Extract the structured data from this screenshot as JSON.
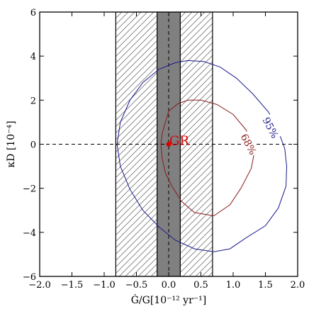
{
  "chart_data": {
    "type": "scatter",
    "xlabel": "Ġ/G[10⁻¹² yr⁻¹]",
    "ylabel": "κD [10⁻⁴]",
    "xlim": [
      -2.0,
      2.0
    ],
    "ylim": [
      -6,
      6
    ],
    "x_ticks": [
      -2.0,
      -1.5,
      -1.0,
      -0.5,
      0.0,
      0.5,
      1.0,
      1.5,
      2.0
    ],
    "x_tick_labels": [
      "−2.0",
      "−1.5",
      "−1.0",
      "−0.5",
      "0.0",
      "0.5",
      "1.0",
      "1.5",
      "2.0"
    ],
    "y_ticks": [
      -6,
      -4,
      -2,
      0,
      2,
      4,
      6
    ],
    "y_tick_labels": [
      "−6",
      "−4",
      "−2",
      "0",
      "2",
      "4",
      "6"
    ],
    "reference_lines": {
      "horizontal_y": 0,
      "vertical_x": 0
    },
    "bands": [
      {
        "style": "hatched",
        "x_range": [
          -0.82,
          0.68
        ],
        "color": "#888888"
      },
      {
        "style": "solid",
        "x_range": [
          -0.18,
          0.18
        ],
        "color": "#808080"
      }
    ],
    "point": {
      "label": "GR",
      "x": 0.0,
      "y": 0.0,
      "color": "#dd0000"
    },
    "series": [
      {
        "name": "68%",
        "color": "#8b1a1a",
        "label_pos": {
          "x": 1.24,
          "y": 0.0
        },
        "points": [
          [
            0.0,
            1.5
          ],
          [
            0.15,
            1.85
          ],
          [
            0.3,
            2.0
          ],
          [
            0.5,
            2.0
          ],
          [
            0.75,
            1.8
          ],
          [
            1.0,
            1.35
          ],
          [
            1.2,
            0.65
          ],
          [
            1.3,
            0.0
          ],
          [
            1.32,
            -0.5
          ],
          [
            1.28,
            -1.1
          ],
          [
            1.12,
            -2.0
          ],
          [
            0.95,
            -2.75
          ],
          [
            0.7,
            -3.25
          ],
          [
            0.4,
            -3.1
          ],
          [
            0.2,
            -2.6
          ],
          [
            0.05,
            -1.9
          ],
          [
            -0.05,
            -1.3
          ],
          [
            -0.1,
            -0.65
          ],
          [
            -0.12,
            0.0
          ],
          [
            -0.1,
            0.5
          ],
          [
            -0.05,
            1.0
          ],
          [
            0.0,
            1.5
          ]
        ]
      },
      {
        "name": "95%",
        "color": "#1a1a8b",
        "label_pos": {
          "x": 1.58,
          "y": 0.75
        },
        "points": [
          [
            -0.8,
            0.0
          ],
          [
            -0.75,
            1.0
          ],
          [
            -0.6,
            2.0
          ],
          [
            -0.4,
            2.8
          ],
          [
            -0.15,
            3.4
          ],
          [
            0.1,
            3.7
          ],
          [
            0.3,
            3.8
          ],
          [
            0.55,
            3.75
          ],
          [
            0.8,
            3.5
          ],
          [
            1.05,
            3.0
          ],
          [
            1.3,
            2.3
          ],
          [
            1.55,
            1.45
          ],
          [
            1.7,
            0.6
          ],
          [
            1.8,
            -0.2
          ],
          [
            1.83,
            -1.0
          ],
          [
            1.82,
            -1.9
          ],
          [
            1.7,
            -2.9
          ],
          [
            1.5,
            -3.7
          ],
          [
            1.2,
            -4.25
          ],
          [
            0.95,
            -4.75
          ],
          [
            0.7,
            -4.88
          ],
          [
            0.4,
            -4.75
          ],
          [
            0.1,
            -4.35
          ],
          [
            -0.15,
            -3.75
          ],
          [
            -0.4,
            -3.0
          ],
          [
            -0.6,
            -2.05
          ],
          [
            -0.75,
            -1.0
          ],
          [
            -0.8,
            0.0
          ]
        ]
      }
    ]
  }
}
